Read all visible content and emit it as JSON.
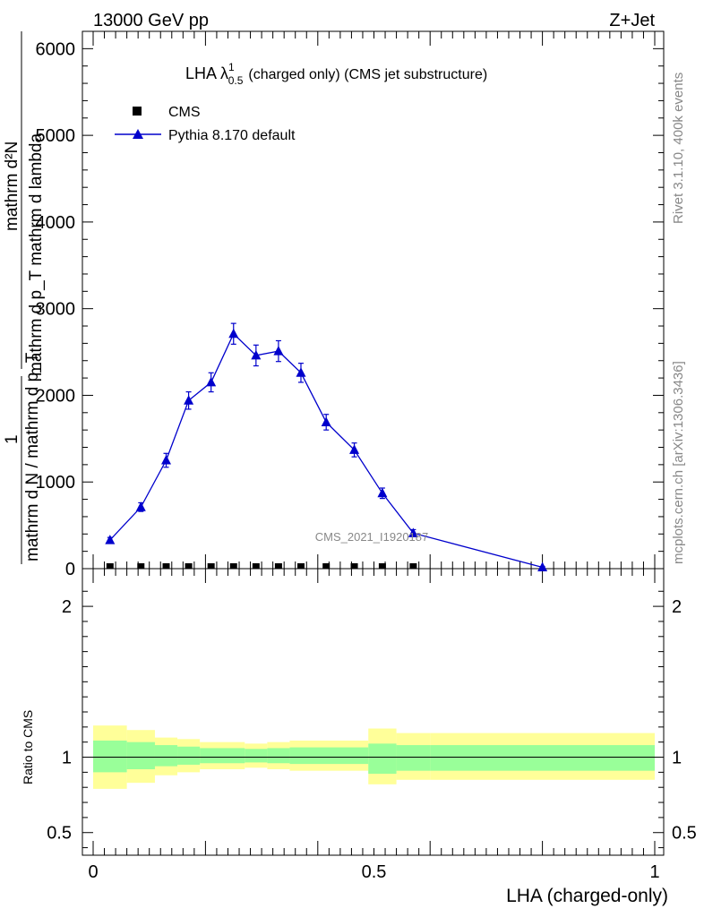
{
  "header": {
    "left": "13000 GeV pp",
    "right": "Z+Jet"
  },
  "side": {
    "top": "Rivet 3.1.10,  400k events",
    "bottom": "mcplots.cern.ch [arXiv:1306.3436]"
  },
  "chart_data": [
    {
      "type": "line",
      "title_main": "LHA λ",
      "title_sup": "1",
      "title_sub": "0.5",
      "title_rest": "(charged only) (CMS jet substructure)",
      "ylabel_top": "mathrm d²N",
      "ylabel_mid": "mathrm d p_T mathrm d lambda",
      "ylabel_bottom_1": "1",
      "ylabel_bottom_2": "mathrm d N / mathrm d p_T",
      "ylim": [
        0,
        6200
      ],
      "yticks": [
        "0",
        "1000",
        "2000",
        "3000",
        "4000",
        "5000",
        "6000"
      ],
      "watermark": "CMS_2021_I1920187",
      "legend": {
        "placement": "top-left",
        "entries": [
          "CMS",
          "Pythia 8.170 default"
        ]
      },
      "series": [
        {
          "name": "CMS",
          "marker": "square",
          "color": "#000000",
          "x": [
            0.03,
            0.085,
            0.13,
            0.17,
            0.21,
            0.25,
            0.29,
            0.33,
            0.37,
            0.415,
            0.465,
            0.515,
            0.57
          ],
          "y": [
            0,
            0,
            0,
            0,
            0,
            0,
            0,
            0,
            0,
            0,
            0,
            0,
            0
          ]
        },
        {
          "name": "Pythia 8.170 default",
          "marker": "triangle",
          "color": "#0000cc",
          "x": [
            0.03,
            0.085,
            0.13,
            0.17,
            0.21,
            0.25,
            0.29,
            0.33,
            0.37,
            0.415,
            0.465,
            0.515,
            0.57,
            0.8
          ],
          "y": [
            330,
            710,
            1250,
            1940,
            2150,
            2710,
            2460,
            2510,
            2260,
            1690,
            1370,
            870,
            410,
            15
          ],
          "err": [
            30,
            50,
            80,
            100,
            110,
            120,
            120,
            120,
            110,
            90,
            80,
            60,
            40,
            10
          ]
        }
      ]
    },
    {
      "type": "area",
      "ylabel": "Ratio to CMS",
      "xlabel": "LHA (charged-only)",
      "xlim": [
        0,
        1
      ],
      "ylim": [
        0.35,
        2.25
      ],
      "yticks": [
        "0.5",
        "1",
        "2"
      ],
      "xticks": [
        "0",
        "0.5",
        "1"
      ],
      "ratio_line": 1,
      "bands": {
        "edges": [
          0,
          0.06,
          0.11,
          0.15,
          0.19,
          0.27,
          0.31,
          0.35,
          0.49,
          0.54,
          0.6,
          1.0
        ],
        "green_lo": [
          0.9,
          0.92,
          0.94,
          0.95,
          0.96,
          0.965,
          0.96,
          0.955,
          0.89,
          0.91,
          0.91
        ],
        "green_hi": [
          1.11,
          1.1,
          1.08,
          1.07,
          1.06,
          1.055,
          1.06,
          1.065,
          1.09,
          1.08,
          1.08
        ],
        "yellow_lo": [
          0.79,
          0.83,
          0.88,
          0.9,
          0.92,
          0.93,
          0.92,
          0.91,
          0.82,
          0.85,
          0.85
        ],
        "yellow_hi": [
          1.21,
          1.18,
          1.13,
          1.12,
          1.1,
          1.09,
          1.1,
          1.11,
          1.19,
          1.16,
          1.16
        ],
        "green_color": "#99ff99",
        "yellow_color": "#ffff99"
      }
    }
  ]
}
